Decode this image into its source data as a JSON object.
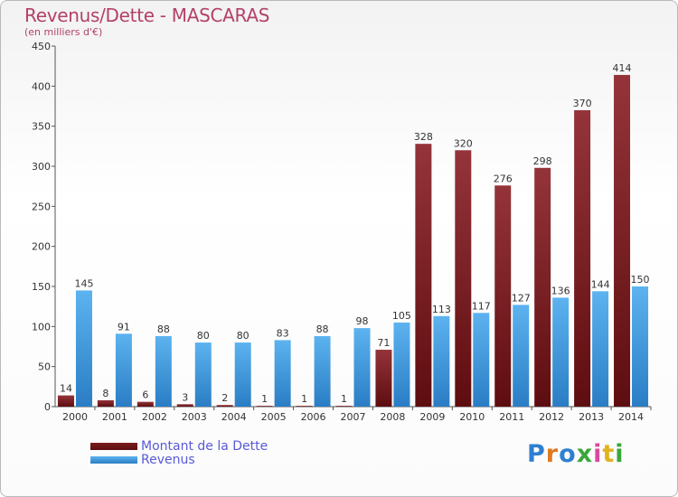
{
  "header": {
    "title": "Revenus/Dette - MASCARAS",
    "subtitle": "(en milliers d'€)"
  },
  "legend": {
    "debt_label": "Montant de la Dette",
    "revenue_label": "Revenus"
  },
  "logo": {
    "text": "Proxiti"
  },
  "colors": {
    "debt": "#7b1d1f",
    "revenue": "#3c93d7",
    "title": "#b4406a",
    "legend_text": "#5a5ad8"
  },
  "chart_data": {
    "type": "bar",
    "title": "Revenus/Dette - MASCARAS",
    "subtitle": "(en milliers d'€)",
    "categories": [
      "2000",
      "2001",
      "2002",
      "2003",
      "2004",
      "2005",
      "2006",
      "2007",
      "2008",
      "2009",
      "2010",
      "2011",
      "2012",
      "2013",
      "2014"
    ],
    "series": [
      {
        "name": "Montant de la Dette",
        "values": [
          14,
          8,
          6,
          3,
          2,
          1,
          1,
          1,
          71,
          328,
          320,
          276,
          298,
          370,
          414
        ]
      },
      {
        "name": "Revenus",
        "values": [
          145,
          91,
          88,
          80,
          80,
          83,
          88,
          98,
          105,
          113,
          117,
          127,
          136,
          144,
          150
        ]
      }
    ],
    "ylim": [
      0,
      450
    ],
    "yticks": [
      0,
      50,
      100,
      150,
      200,
      250,
      300,
      350,
      400,
      450
    ],
    "grid": false,
    "legend_position": "bottom-left"
  }
}
